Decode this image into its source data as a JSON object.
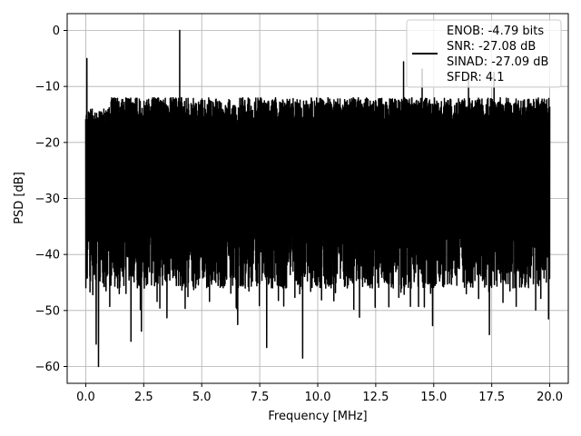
{
  "chart_data": {
    "type": "line",
    "title": "",
    "xlabel": "Frequency [MHz]",
    "ylabel": "PSD [dB]",
    "xlim": [
      -0.8,
      20.8
    ],
    "ylim": [
      -63,
      3
    ],
    "xticks": [
      0.0,
      2.5,
      5.0,
      7.5,
      10.0,
      12.5,
      15.0,
      17.5,
      20.0
    ],
    "xtick_labels": [
      "0.0",
      "2.5",
      "5.0",
      "7.5",
      "10.0",
      "12.5",
      "15.0",
      "17.5",
      "20.0"
    ],
    "yticks": [
      0,
      -10,
      -20,
      -30,
      -40,
      -50,
      -60
    ],
    "ytick_labels": [
      "0",
      "−10",
      "−20",
      "−30",
      "−40",
      "−50",
      "−60"
    ],
    "grid": true,
    "legend_position": "top-right",
    "line_color": "#000000",
    "series": [
      {
        "name": "",
        "legend_lines": [
          "ENOB: -4.79 bits",
          "SNR: -27.08 dB",
          "SINAD: -27.09 dB",
          "SFDR: 4.1"
        ],
        "noise_floor_range_db": [
          -60,
          -11
        ],
        "typical_envelope_db": [
          -40,
          -15
        ],
        "peaks": [
          {
            "x": 0.05,
            "y": -5
          },
          {
            "x": 4.05,
            "y": 0
          },
          {
            "x": 13.7,
            "y": -5.6
          },
          {
            "x": 14.5,
            "y": -6.9
          },
          {
            "x": 17.6,
            "y": -7.5
          },
          {
            "x": 16.5,
            "y": -8.0
          }
        ],
        "dips": [
          {
            "x": 0.55,
            "y": -60
          },
          {
            "x": 0.45,
            "y": -56
          },
          {
            "x": 7.8,
            "y": -56.6
          },
          {
            "x": 9.35,
            "y": -58.5
          },
          {
            "x": 1.95,
            "y": -55.5
          },
          {
            "x": 14.95,
            "y": -52.7
          },
          {
            "x": 17.4,
            "y": -54.3
          },
          {
            "x": 19.95,
            "y": -51.5
          },
          {
            "x": 2.4,
            "y": -53.7
          },
          {
            "x": 6.55,
            "y": -52.5
          },
          {
            "x": 3.5,
            "y": -51.3
          },
          {
            "x": 11.8,
            "y": -51.2
          }
        ]
      }
    ]
  }
}
